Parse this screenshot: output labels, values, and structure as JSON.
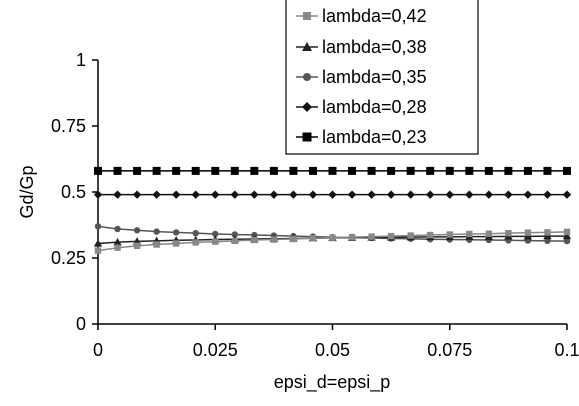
{
  "chart_data": {
    "type": "line",
    "xlabel": "epsi_d=epsi_p",
    "ylabel": "Gd/Gp",
    "xlim": [
      0,
      0.1
    ],
    "ylim": [
      0,
      1
    ],
    "x_ticks": [
      "0",
      "0.025",
      "0.05",
      "0.075",
      "0.1"
    ],
    "y_ticks": [
      "0",
      "0.25",
      "0.5",
      "0.75",
      "1"
    ],
    "grid": false,
    "legend_position": "top-right",
    "x": [
      0,
      0.004167,
      0.008333,
      0.0125,
      0.016667,
      0.020833,
      0.025,
      0.029167,
      0.033333,
      0.0375,
      0.041667,
      0.045833,
      0.05,
      0.054167,
      0.058333,
      0.0625,
      0.066667,
      0.070833,
      0.075,
      0.079167,
      0.083333,
      0.0875,
      0.091667,
      0.095833,
      0.1
    ],
    "series": [
      {
        "name": "lambda=0,42",
        "marker": "square",
        "color": "#888888",
        "values": [
          0.278,
          0.289,
          0.296,
          0.301,
          0.305,
          0.309,
          0.312,
          0.315,
          0.318,
          0.32,
          0.322,
          0.325,
          0.327,
          0.329,
          0.331,
          0.333,
          0.335,
          0.337,
          0.339,
          0.341,
          0.342,
          0.344,
          0.346,
          0.347,
          0.349
        ]
      },
      {
        "name": "lambda=0,38",
        "marker": "triangle",
        "color": "#222222",
        "values": [
          0.305,
          0.31,
          0.313,
          0.315,
          0.317,
          0.318,
          0.32,
          0.321,
          0.322,
          0.323,
          0.324,
          0.325,
          0.326,
          0.327,
          0.328,
          0.328,
          0.329,
          0.33,
          0.33,
          0.331,
          0.331,
          0.332,
          0.332,
          0.333,
          0.333
        ]
      },
      {
        "name": "lambda=0,35",
        "marker": "circle",
        "color": "#555555",
        "values": [
          0.37,
          0.36,
          0.355,
          0.35,
          0.347,
          0.344,
          0.341,
          0.339,
          0.337,
          0.335,
          0.333,
          0.331,
          0.329,
          0.327,
          0.326,
          0.324,
          0.323,
          0.321,
          0.32,
          0.319,
          0.318,
          0.317,
          0.316,
          0.315,
          0.314
        ]
      },
      {
        "name": "lambda=0,28",
        "marker": "diamond",
        "color": "#111111",
        "values": [
          0.49,
          0.49,
          0.49,
          0.49,
          0.49,
          0.49,
          0.49,
          0.49,
          0.49,
          0.49,
          0.49,
          0.49,
          0.49,
          0.49,
          0.49,
          0.49,
          0.49,
          0.49,
          0.49,
          0.49,
          0.49,
          0.49,
          0.49,
          0.49,
          0.49
        ]
      },
      {
        "name": "lambda=0,23",
        "marker": "square",
        "color": "#000000",
        "values": [
          0.58,
          0.58,
          0.58,
          0.58,
          0.58,
          0.58,
          0.58,
          0.58,
          0.58,
          0.58,
          0.58,
          0.58,
          0.58,
          0.58,
          0.58,
          0.58,
          0.58,
          0.58,
          0.58,
          0.58,
          0.58,
          0.58,
          0.58,
          0.58,
          0.58
        ]
      }
    ]
  }
}
